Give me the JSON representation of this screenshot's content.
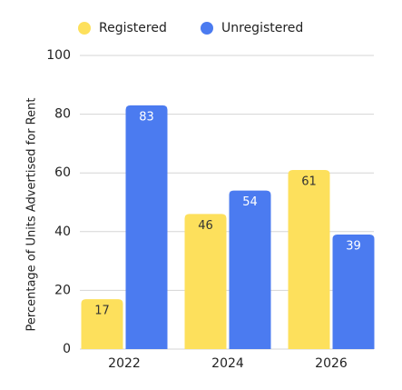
{
  "chart_data": {
    "type": "bar",
    "y_label": "Percentage of Units Advertised for Rent",
    "categories": [
      "2022",
      "2024",
      "2026"
    ],
    "series": [
      {
        "name": "Registered",
        "color": "#fde05c",
        "label_color": "#333333",
        "values": [
          17,
          46,
          61
        ]
      },
      {
        "name": "Unregistered",
        "color": "#4b7bf0",
        "label_color": "#ffffff",
        "values": [
          83,
          54,
          39
        ]
      }
    ],
    "ylim": [
      0,
      100
    ],
    "yticks": [
      0,
      20,
      40,
      60,
      80,
      100
    ],
    "grid": true,
    "legend": "top-left"
  }
}
